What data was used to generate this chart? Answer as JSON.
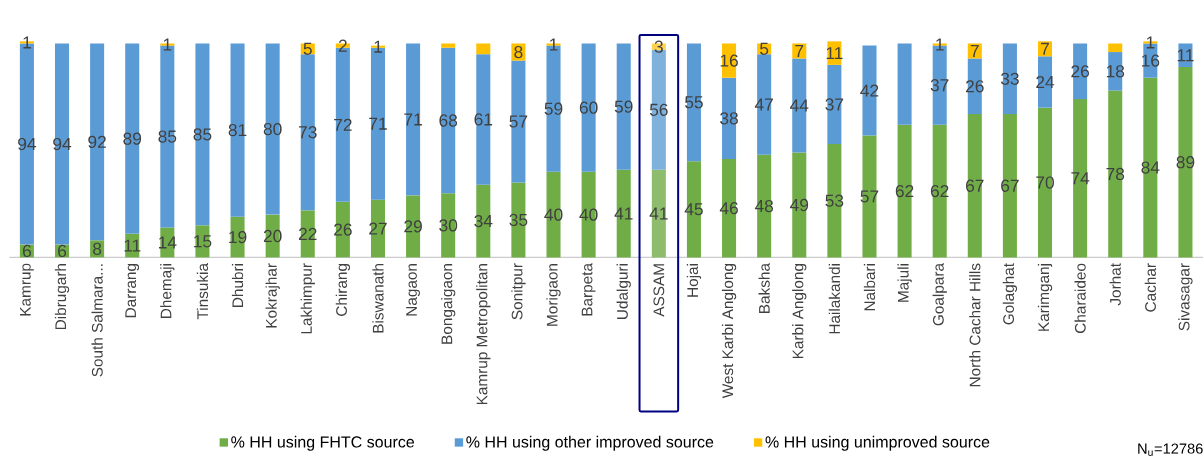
{
  "chart_data": {
    "type": "bar",
    "stacked": true,
    "ylim": [
      0,
      101
    ],
    "legend": "bottom",
    "categories": [
      "Kamrup",
      "Dibrugarh",
      "South Salmara...",
      "Darrang",
      "Dhemaji",
      "Tinsukia",
      "Dhubri",
      "Kokrajhar",
      "Lakhimpur",
      "Chirang",
      "Biswanath",
      "Nagaon",
      "Bongaigaon",
      "Kamrup Metropolitan",
      "Sonitpur",
      "Morigaon",
      "Barpeta",
      "Udalguri",
      "ASSAM",
      "Hojai",
      "West Karbi Anglong",
      "Baksha",
      "Karbi Anglong",
      "Hailakandi",
      "Nalbari",
      "Majuli",
      "Goalpara",
      "North Cachar Hills",
      "Golaghat",
      "Karimganj",
      "Charaideo",
      "Jorhat",
      "Cachar",
      "Sivasagar"
    ],
    "series": [
      {
        "name": "% HH using FHTC source",
        "color": "#70ad47",
        "colors": [
          "#70ad47",
          "#70ad47",
          "#70ad47",
          "#70ad47",
          "#70ad47",
          "#70ad47",
          "#70ad47",
          "#70ad47",
          "#70ad47",
          "#70ad47",
          "#70ad47",
          "#70ad47",
          "#70ad47",
          "#70ad47",
          "#70ad47",
          "#70ad47",
          "#70ad47",
          "#70ad47",
          "#8dbd6c",
          "#70ad47",
          "#70ad47",
          "#70ad47",
          "#70ad47",
          "#70ad47",
          "#70ad47",
          "#70ad47",
          "#70ad47",
          "#70ad47",
          "#70ad47",
          "#70ad47",
          "#70ad47",
          "#70ad47",
          "#70ad47",
          "#70ad47"
        ],
        "values": [
          6,
          6,
          8,
          11,
          14,
          15,
          19,
          20,
          22,
          26,
          27,
          29,
          30,
          34,
          35,
          40,
          40,
          41,
          41,
          45,
          46,
          48,
          49,
          53,
          57,
          62,
          62,
          67,
          67,
          70,
          74,
          78,
          84,
          89
        ],
        "value_labels": [
          "6",
          "6",
          "8",
          "11",
          "14",
          "15",
          "19",
          "20",
          "22",
          "26",
          "27",
          "29",
          "30",
          "34",
          "35",
          "40",
          "40",
          "41",
          "41",
          "45",
          "46",
          "48",
          "49",
          "53",
          "57",
          "62",
          "62",
          "67",
          "67",
          "70",
          "74",
          "78",
          "84",
          "89"
        ]
      },
      {
        "name": "% HH using other improved source",
        "color": "#5b9bd5",
        "colors": [
          "#5b9bd5",
          "#5b9bd5",
          "#5b9bd5",
          "#5b9bd5",
          "#5b9bd5",
          "#5b9bd5",
          "#5b9bd5",
          "#5b9bd5",
          "#5b9bd5",
          "#5b9bd5",
          "#5b9bd5",
          "#5b9bd5",
          "#5b9bd5",
          "#5b9bd5",
          "#5b9bd5",
          "#5b9bd5",
          "#5b9bd5",
          "#5b9bd5",
          "#7fb1dd",
          "#5b9bd5",
          "#5b9bd5",
          "#5b9bd5",
          "#5b9bd5",
          "#5b9bd5",
          "#5b9bd5",
          "#5b9bd5",
          "#5b9bd5",
          "#5b9bd5",
          "#5b9bd5",
          "#5b9bd5",
          "#5b9bd5",
          "#5b9bd5",
          "#5b9bd5",
          "#5b9bd5"
        ],
        "values": [
          94,
          94,
          92,
          89,
          85,
          85,
          81,
          80,
          73,
          72,
          71,
          71,
          68,
          61,
          57,
          59,
          60,
          59,
          56,
          55,
          38,
          47,
          44,
          37,
          42,
          38,
          37,
          26,
          33,
          24,
          26,
          18,
          16,
          11
        ],
        "value_labels": [
          "94",
          "94",
          "92",
          "89",
          "85",
          "85",
          "81",
          "80",
          "73",
          "72",
          "71",
          "71",
          "68",
          "61",
          "57",
          "59",
          "60",
          "59",
          "56",
          "55",
          "38",
          "47",
          "44",
          "37",
          "42",
          null,
          "37",
          "26",
          "33",
          "24",
          "26",
          "18",
          "16",
          "11"
        ]
      },
      {
        "name": "% HH using unimproved source",
        "color": "#ffc000",
        "colors": [
          "#ffc000",
          "#ffc000",
          "#ffc000",
          "#ffc000",
          "#ffc000",
          "#ffc000",
          "#ffc000",
          "#ffc000",
          "#ffc000",
          "#ffc000",
          "#ffc000",
          "#ffc000",
          "#ffc000",
          "#ffc000",
          "#ffc000",
          "#ffc000",
          "#ffc000",
          "#ffc000",
          "#ffd24d",
          "#ffc000",
          "#ffc000",
          "#ffc000",
          "#ffc000",
          "#ffc000",
          "#ffc000",
          "#ffc000",
          "#ffc000",
          "#ffc000",
          "#ffc000",
          "#ffc000",
          "#ffc000",
          "#ffc000",
          "#ffc000",
          "#ffc000"
        ],
        "values": [
          1,
          0,
          0,
          0,
          1,
          0,
          0,
          0,
          5,
          2,
          1,
          0,
          2,
          5,
          8,
          1,
          0,
          0,
          3,
          0,
          16,
          5,
          7,
          11,
          0,
          0,
          1,
          7,
          0,
          7,
          0,
          4,
          1,
          0
        ],
        "value_labels": [
          "1",
          null,
          null,
          null,
          "1",
          null,
          null,
          null,
          "5",
          "2",
          "1",
          null,
          null,
          null,
          "8",
          "1",
          null,
          null,
          "3",
          null,
          "16",
          "5",
          "7",
          "11",
          null,
          null,
          "1",
          "7",
          null,
          "7",
          null,
          null,
          "1",
          null
        ]
      }
    ],
    "annotations": [
      "N$_{u}$=12786"
    ]
  }
}
